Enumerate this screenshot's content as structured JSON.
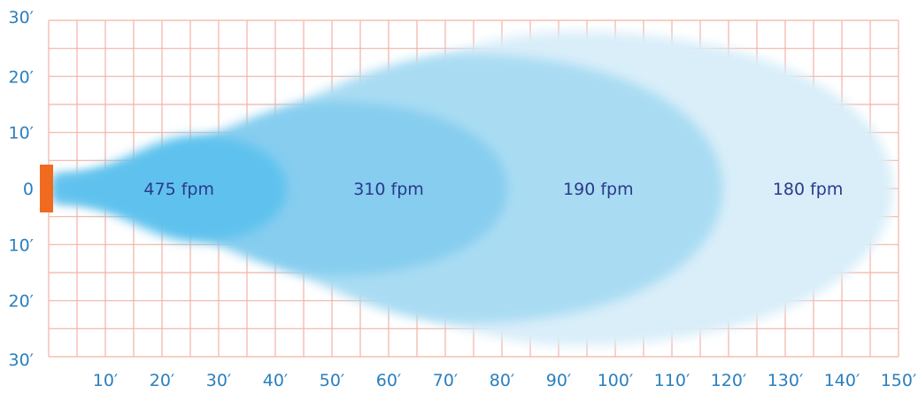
{
  "chart_data": {
    "type": "area",
    "title": "",
    "xlabel": "",
    "ylabel": "",
    "x_unit": "ft",
    "y_unit": "ft",
    "xlim": [
      0,
      150
    ],
    "ylim": [
      -30,
      30
    ],
    "grid": true,
    "x_ticks": [
      {
        "value": 10,
        "label": "10′"
      },
      {
        "value": 20,
        "label": "20′"
      },
      {
        "value": 30,
        "label": "30′"
      },
      {
        "value": 40,
        "label": "40′"
      },
      {
        "value": 50,
        "label": "50′"
      },
      {
        "value": 60,
        "label": "60′"
      },
      {
        "value": 70,
        "label": "70′"
      },
      {
        "value": 80,
        "label": "80′"
      },
      {
        "value": 90,
        "label": "90′"
      },
      {
        "value": 100,
        "label": "100′"
      },
      {
        "value": 110,
        "label": "110′"
      },
      {
        "value": 120,
        "label": "120′"
      },
      {
        "value": 130,
        "label": "130′"
      },
      {
        "value": 140,
        "label": "140′"
      },
      {
        "value": 150,
        "label": "150′"
      }
    ],
    "y_ticks": [
      {
        "value": 30,
        "label": "30′"
      },
      {
        "value": 20,
        "label": "20′"
      },
      {
        "value": 10,
        "label": "10′"
      },
      {
        "value": 0,
        "label": "0"
      },
      {
        "value": -10,
        "label": "10′"
      },
      {
        "value": -20,
        "label": "20′"
      },
      {
        "value": -30,
        "label": "30′"
      }
    ],
    "series": [
      {
        "label": "180 fpm",
        "reach": 149,
        "half_width": 28,
        "label_x": 134,
        "color": "#d9eef9"
      },
      {
        "label": "190 fpm",
        "reach": 119,
        "half_width": 24,
        "label_x": 97,
        "color": "#a9dcf3"
      },
      {
        "label": "310 fpm",
        "reach": 81,
        "half_width": 15.5,
        "label_x": 60,
        "color": "#86cdef"
      },
      {
        "label": "475 fpm",
        "reach": 42,
        "half_width": 9.5,
        "label_x": 23,
        "color": "#5ec2ee"
      }
    ],
    "source_color": "#f06a1f",
    "grid_color": "#f4b2a4",
    "tick_color": "#2a7fbe",
    "label_color": "#2b3a8a"
  }
}
